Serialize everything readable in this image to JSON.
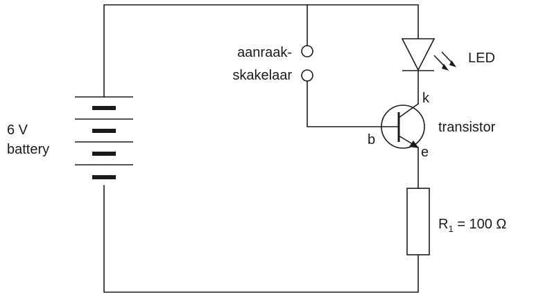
{
  "battery": {
    "line1": "6 V",
    "line2": "battery"
  },
  "touch_switch": {
    "line1": "aanraak-",
    "line2": "skakelaar"
  },
  "led": {
    "label": "LED"
  },
  "transistor": {
    "label": "transistor",
    "collector": "k",
    "base": "b",
    "emitter": "e"
  },
  "resistor": {
    "symbol": "R",
    "subscript": "1",
    "value": " = 100 Ω"
  }
}
